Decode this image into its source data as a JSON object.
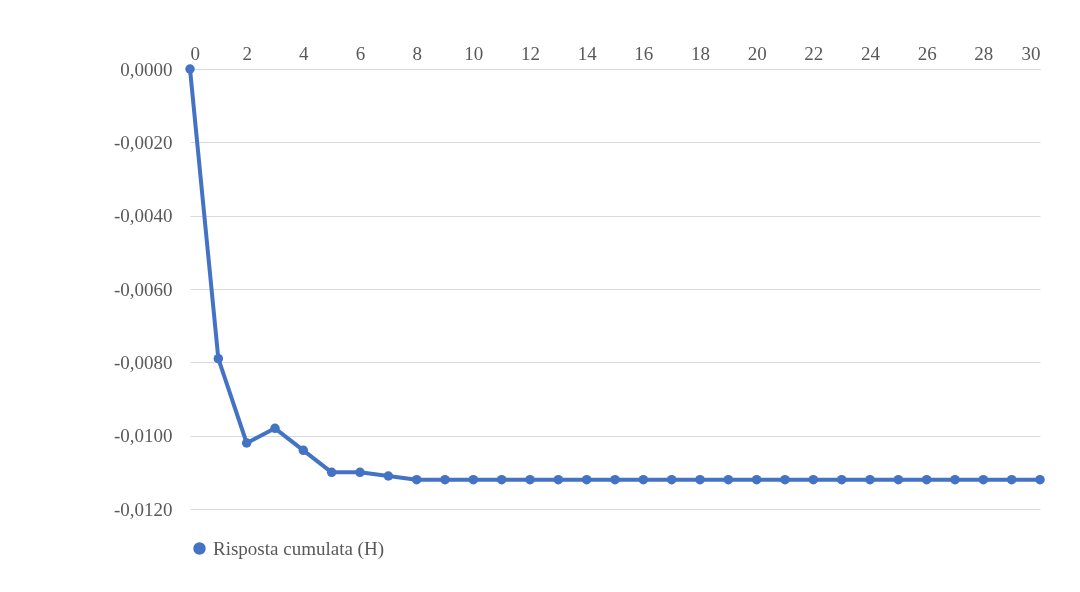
{
  "chart_data": {
    "type": "line",
    "x": [
      0,
      1,
      2,
      3,
      4,
      5,
      6,
      7,
      8,
      9,
      10,
      11,
      12,
      13,
      14,
      15,
      16,
      17,
      18,
      19,
      20,
      21,
      22,
      23,
      24,
      25,
      26,
      27,
      28,
      29,
      30
    ],
    "series": [
      {
        "name": "Risposta cumulata (H)",
        "color": "#4472c4",
        "values": [
          0,
          -0.0079,
          -0.0102,
          -0.0098,
          -0.0104,
          -0.011,
          -0.011,
          -0.0111,
          -0.0112,
          -0.0112,
          -0.0112,
          -0.0112,
          -0.0112,
          -0.0112,
          -0.0112,
          -0.0112,
          -0.0112,
          -0.0112,
          -0.0112,
          -0.0112,
          -0.0112,
          -0.0112,
          -0.0112,
          -0.0112,
          -0.0112,
          -0.0112,
          -0.0112,
          -0.0112,
          -0.0112,
          -0.0112,
          -0.0112
        ]
      }
    ],
    "xlim": [
      0,
      30
    ],
    "xticks": [
      0,
      2,
      4,
      6,
      8,
      10,
      12,
      14,
      16,
      18,
      20,
      22,
      24,
      26,
      28,
      30
    ],
    "ylim": [
      -0.012,
      0
    ],
    "yticks": [
      {
        "value": 0,
        "label": "0,0000"
      },
      {
        "value": -0.002,
        "label": "-0,0020"
      },
      {
        "value": -0.004,
        "label": "-0,0040"
      },
      {
        "value": -0.006,
        "label": "-0,0060"
      },
      {
        "value": -0.008,
        "label": "-0,0080"
      },
      {
        "value": -0.01,
        "label": "-0,0100"
      },
      {
        "value": -0.012,
        "label": "-0,0120"
      }
    ],
    "grid": "y",
    "legend": "bottom",
    "marker": "circle",
    "line_style": "solid"
  }
}
